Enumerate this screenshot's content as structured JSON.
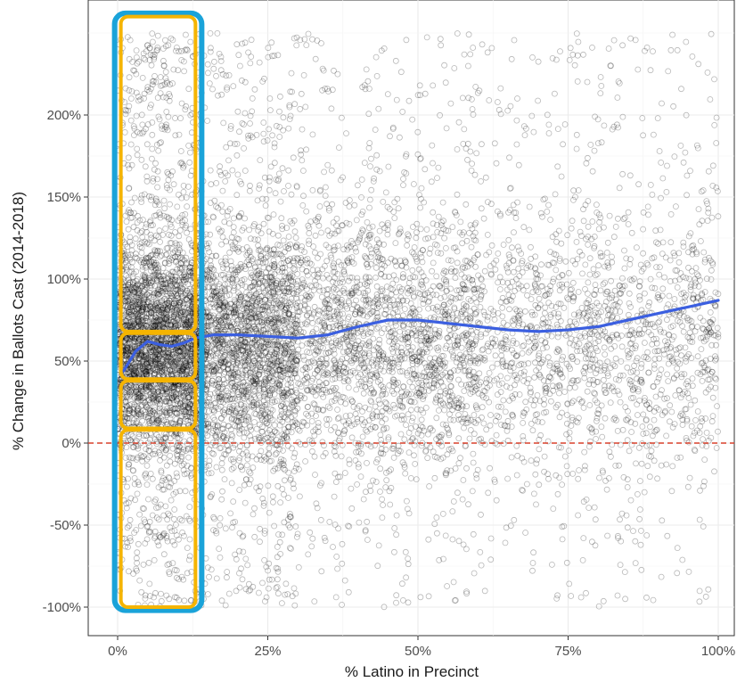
{
  "chart_data": {
    "type": "scatter",
    "title": "",
    "xlabel": "% Latino in Precinct",
    "ylabel": "% Change in Ballots Cast (2014-2018)",
    "xlim": [
      0,
      1
    ],
    "ylim": [
      -1.2,
      2.7
    ],
    "x_ticks": [
      {
        "value": 0,
        "label": "0%"
      },
      {
        "value": 0.25,
        "label": "25%"
      },
      {
        "value": 0.5,
        "label": "50%"
      },
      {
        "value": 0.75,
        "label": "75%"
      },
      {
        "value": 1,
        "label": "100%"
      }
    ],
    "y_ticks": [
      {
        "value": -1,
        "label": "-100%"
      },
      {
        "value": -0.5,
        "label": "-50%"
      },
      {
        "value": 0,
        "label": "0%"
      },
      {
        "value": 0.5,
        "label": "50%"
      },
      {
        "value": 1,
        "label": "100%"
      },
      {
        "value": 1.5,
        "label": "150%"
      },
      {
        "value": 2,
        "label": "200%"
      }
    ],
    "grid": true,
    "reference_line": {
      "y": 0,
      "color": "#d9402b",
      "style": "dashed"
    },
    "smooth_line": {
      "color": "#3b5fe0",
      "points": [
        [
          0.01,
          0.44
        ],
        [
          0.03,
          0.56
        ],
        [
          0.05,
          0.62
        ],
        [
          0.07,
          0.6
        ],
        [
          0.09,
          0.59
        ],
        [
          0.11,
          0.61
        ],
        [
          0.13,
          0.64
        ],
        [
          0.16,
          0.66
        ],
        [
          0.2,
          0.66
        ],
        [
          0.25,
          0.65
        ],
        [
          0.3,
          0.64
        ],
        [
          0.35,
          0.66
        ],
        [
          0.4,
          0.71
        ],
        [
          0.45,
          0.75
        ],
        [
          0.5,
          0.75
        ],
        [
          0.55,
          0.73
        ],
        [
          0.6,
          0.71
        ],
        [
          0.65,
          0.69
        ],
        [
          0.7,
          0.68
        ],
        [
          0.75,
          0.69
        ],
        [
          0.8,
          0.71
        ],
        [
          0.85,
          0.75
        ],
        [
          0.9,
          0.79
        ],
        [
          0.95,
          0.83
        ],
        [
          1.0,
          0.87
        ]
      ]
    },
    "point_style": {
      "color": "#000000",
      "opacity": 0.28,
      "shape": "open-circle"
    },
    "point_density": [
      {
        "x_range": [
          0.0,
          0.14
        ],
        "count": 3400,
        "center": 0.6,
        "spread": 0.45
      },
      {
        "x_range": [
          0.14,
          0.3
        ],
        "count": 2200,
        "center": 0.6,
        "spread": 0.5
      },
      {
        "x_range": [
          0.3,
          0.6
        ],
        "count": 2000,
        "center": 0.65,
        "spread": 0.55
      },
      {
        "x_range": [
          0.6,
          1.0
        ],
        "count": 1600,
        "center": 0.65,
        "spread": 0.55
      }
    ],
    "highlight_boxes": {
      "outer": {
        "x_range": [
          -0.005,
          0.14
        ],
        "y_range": [
          -1.02,
          2.62
        ],
        "color": "#1aa3d9"
      },
      "inner": [
        {
          "y_range": [
            0.68,
            2.6
          ],
          "color": "#f5b400"
        },
        {
          "y_range": [
            0.39,
            0.67
          ],
          "color": "#f5b400"
        },
        {
          "y_range": [
            0.09,
            0.38
          ],
          "color": "#f5b400"
        },
        {
          "y_range": [
            -1.0,
            0.08
          ],
          "color": "#f5b400"
        }
      ]
    }
  }
}
